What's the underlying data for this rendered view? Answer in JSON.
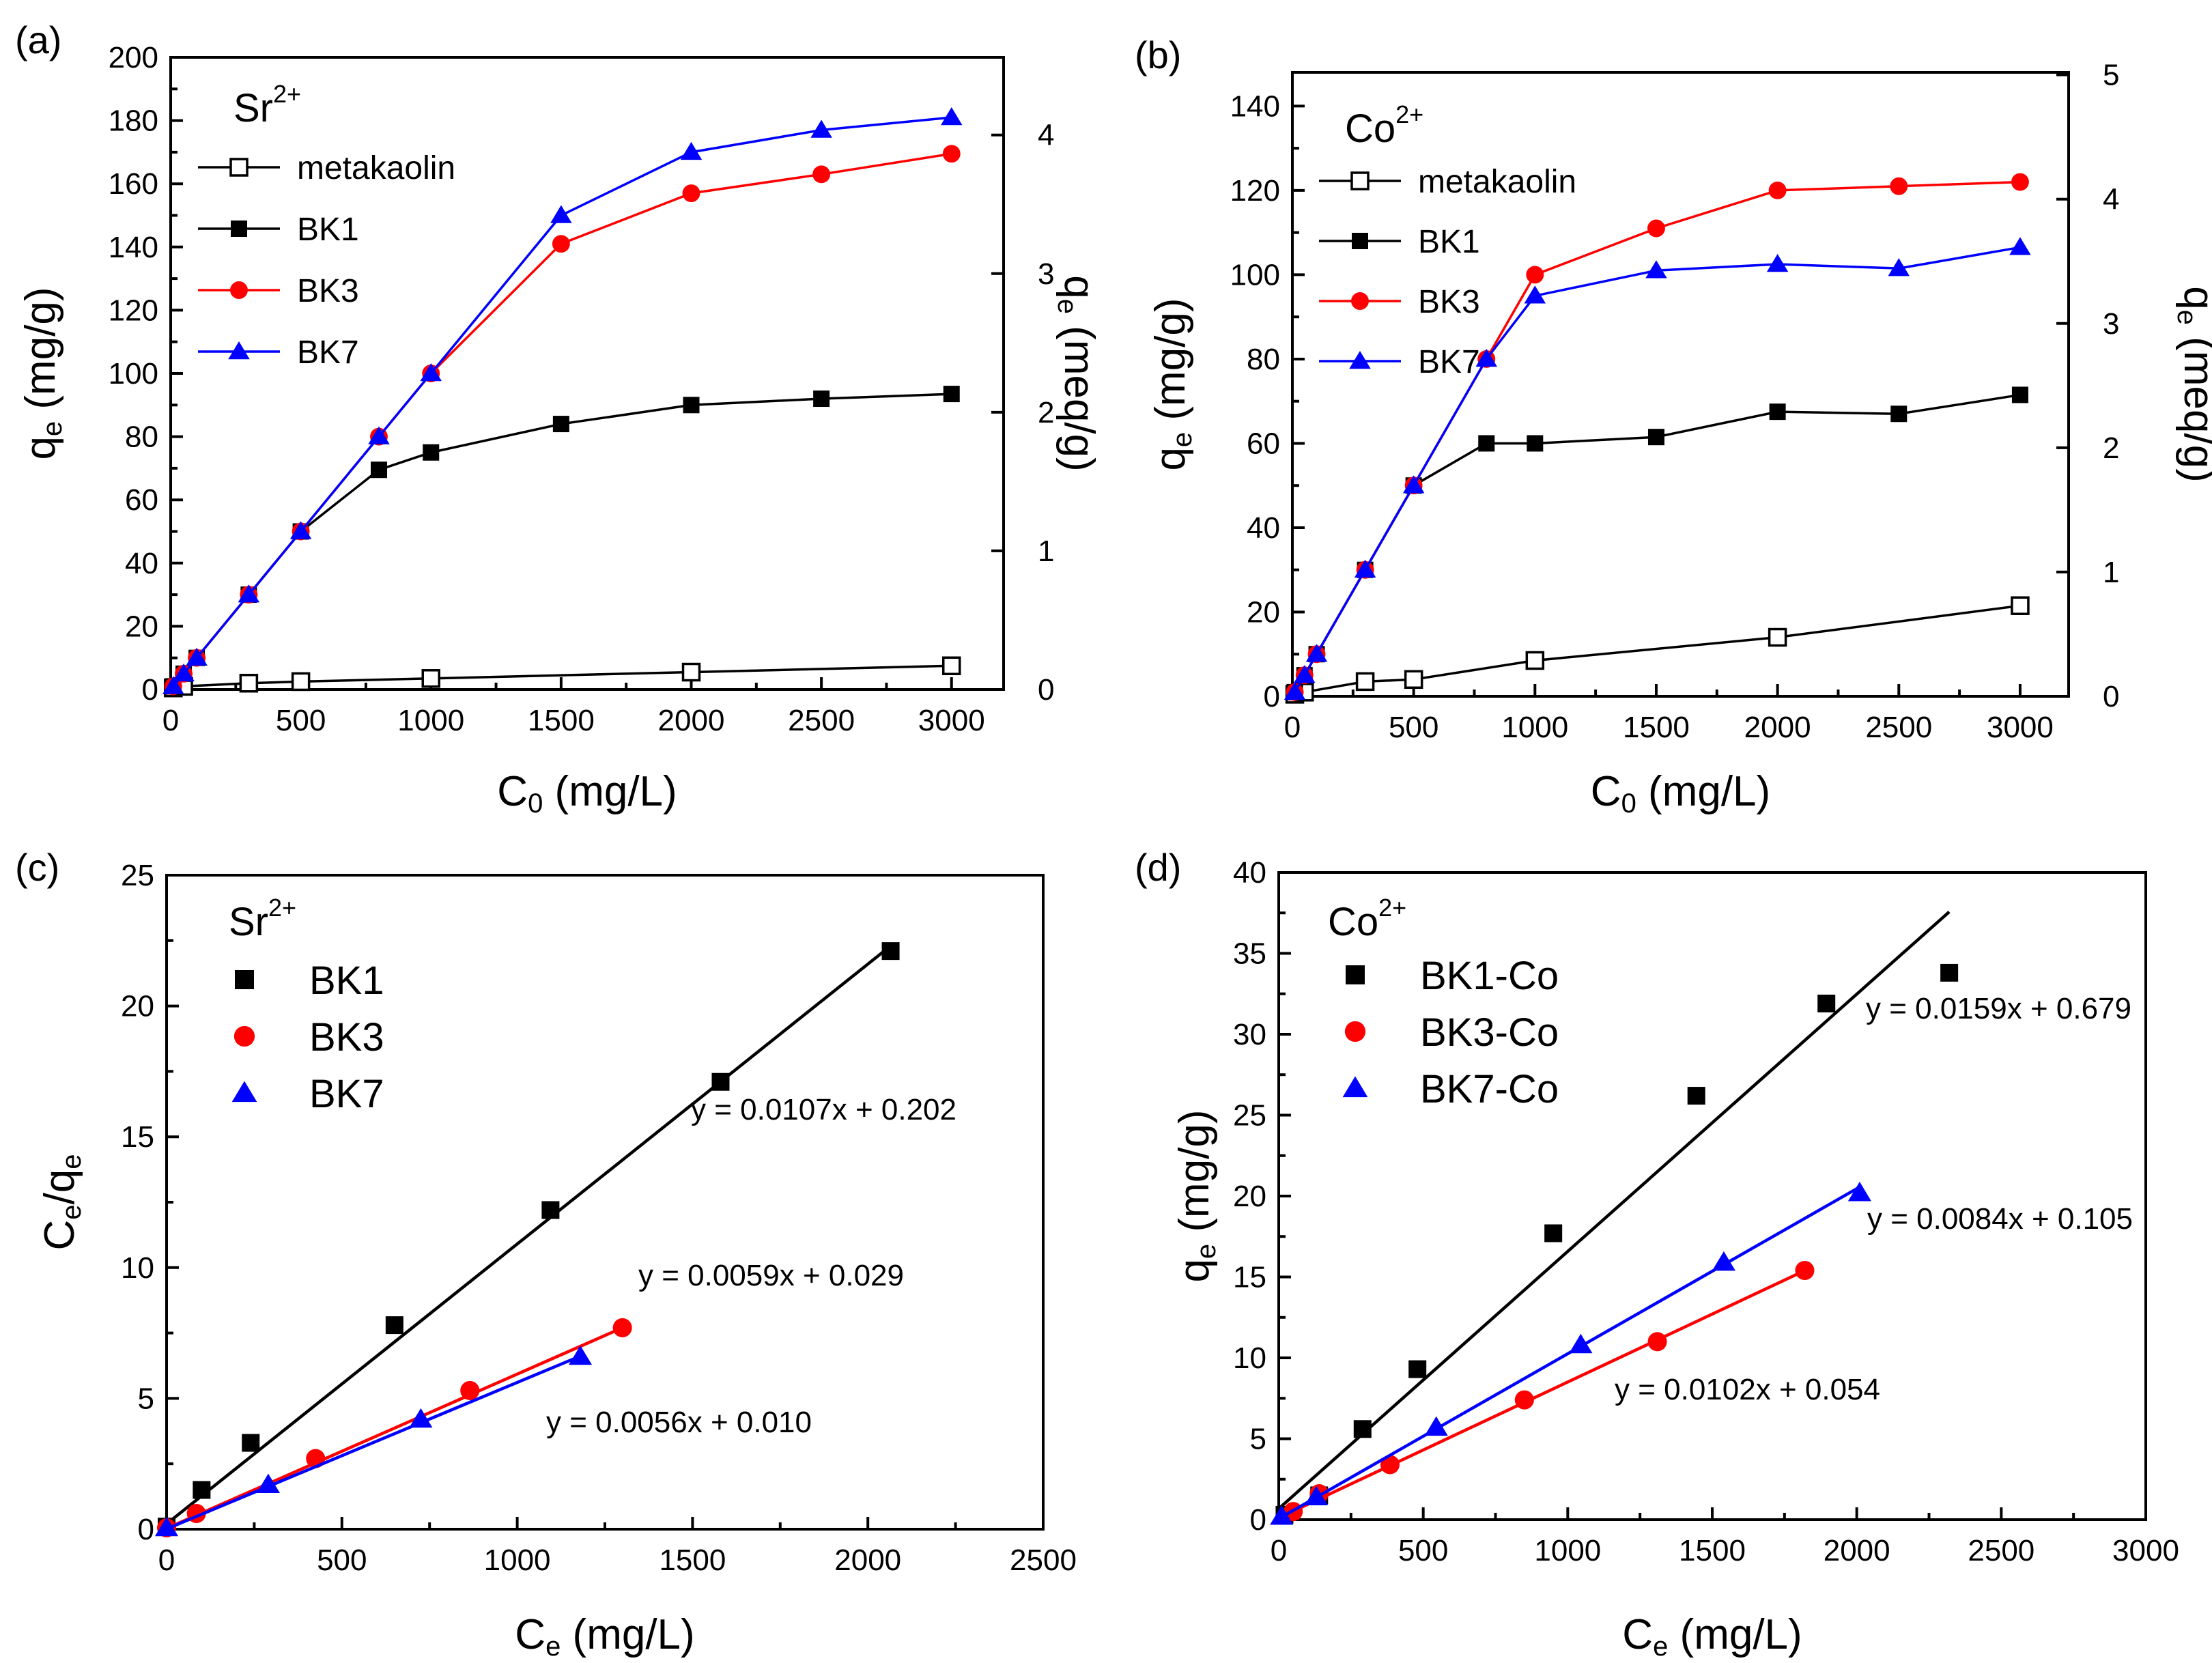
{
  "colors": {
    "black": "#000000",
    "red": "#ff0000",
    "blue": "#0000ff"
  },
  "chart_data": [
    {
      "type": "line",
      "panel_label": "(a)",
      "ion_base": "Sr",
      "ion_charge": "2+",
      "xlabel_main": "C",
      "xlabel_sub": "0",
      "xlabel_unit": " (mg/L)",
      "ylabel_main": "q",
      "ylabel_sub": "e",
      "ylabel_unit": " (mg/g)",
      "y2label_main": "q",
      "y2label_sub": "e",
      "y2label_unit": " (meq/g)",
      "xlim": [
        0,
        3200
      ],
      "ylim": [
        0,
        200
      ],
      "y2lim": [
        0,
        4.56
      ],
      "xticks": [
        0,
        500,
        1000,
        1500,
        2000,
        2500,
        3000
      ],
      "yticks": [
        0,
        20,
        40,
        60,
        80,
        100,
        120,
        140,
        160,
        180,
        200
      ],
      "y2ticks": [
        0,
        1,
        2,
        3,
        4
      ],
      "legend_labels": [
        "metakaolin",
        "BK1",
        "BK3",
        "BK7"
      ],
      "series": [
        {
          "name": "metakaolin",
          "marker": "open-square",
          "color": "#000000",
          "x": [
            10,
            50,
            300,
            500,
            1000,
            2000,
            3000
          ],
          "y": [
            0.5,
            1,
            2,
            2.5,
            3.5,
            5.5,
            7.5
          ]
        },
        {
          "name": "BK1",
          "marker": "square",
          "color": "#000000",
          "x": [
            10,
            50,
            100,
            300,
            500,
            800,
            1000,
            1500,
            2000,
            2500,
            3000
          ],
          "y": [
            1,
            5,
            10,
            30,
            50,
            69.5,
            75,
            84,
            90,
            92,
            93.5
          ]
        },
        {
          "name": "BK3",
          "marker": "circle",
          "color": "#ff0000",
          "x": [
            10,
            50,
            100,
            300,
            500,
            800,
            1000,
            1500,
            2000,
            2500,
            3000
          ],
          "y": [
            1,
            5,
            10,
            30,
            50,
            80,
            100,
            141,
            157,
            163,
            169.5
          ]
        },
        {
          "name": "BK7",
          "marker": "triangle",
          "color": "#0000ff",
          "x": [
            10,
            50,
            100,
            300,
            500,
            800,
            1000,
            1500,
            2000,
            2500,
            3000
          ],
          "y": [
            1,
            5,
            10,
            30,
            50,
            80,
            100,
            150,
            170,
            177,
            181
          ]
        }
      ],
      "equations": []
    },
    {
      "type": "line",
      "panel_label": "(b)",
      "ion_base": "Co",
      "ion_charge": "2+",
      "xlabel_main": "C",
      "xlabel_sub": "0",
      "xlabel_unit": " (mg/L)",
      "ylabel_main": "q",
      "ylabel_sub": "e",
      "ylabel_unit": " (mg/g)",
      "y2label_main": "q",
      "y2label_sub": "e",
      "y2label_unit": " (meq/g)",
      "xlim": [
        0,
        3200
      ],
      "ylim": [
        0,
        148
      ],
      "y2lim": [
        0,
        5.02
      ],
      "xticks": [
        0,
        500,
        1000,
        1500,
        2000,
        2500,
        3000
      ],
      "yticks": [
        0,
        20,
        40,
        60,
        80,
        100,
        120,
        140
      ],
      "y2ticks": [
        0,
        1,
        2,
        3,
        4,
        5
      ],
      "legend_labels": [
        "metakaolin",
        "BK1",
        "BK3",
        "BK7"
      ],
      "series": [
        {
          "name": "metakaolin",
          "marker": "open-square",
          "color": "#000000",
          "x": [
            10,
            50,
            300,
            500,
            1000,
            2000,
            3000
          ],
          "y": [
            0.5,
            1,
            3.5,
            4,
            8.5,
            14,
            21.5
          ]
        },
        {
          "name": "BK1",
          "marker": "square",
          "color": "#000000",
          "x": [
            10,
            50,
            100,
            300,
            500,
            800,
            1000,
            1500,
            2000,
            2500,
            3000
          ],
          "y": [
            1,
            5,
            10,
            30,
            50,
            60,
            60,
            61.5,
            67.5,
            67,
            71.5
          ]
        },
        {
          "name": "BK3",
          "marker": "circle",
          "color": "#ff0000",
          "x": [
            10,
            50,
            100,
            300,
            500,
            800,
            1000,
            1500,
            2000,
            2500,
            3000
          ],
          "y": [
            1,
            5,
            10,
            30,
            50,
            80,
            100,
            111,
            120,
            121,
            122
          ]
        },
        {
          "name": "BK7",
          "marker": "triangle",
          "color": "#0000ff",
          "x": [
            10,
            50,
            100,
            300,
            500,
            800,
            1000,
            1500,
            2000,
            2500,
            3000
          ],
          "y": [
            1,
            5,
            10,
            30,
            50,
            80,
            95,
            101,
            102.5,
            101.5,
            106.5
          ]
        }
      ],
      "equations": []
    },
    {
      "type": "scatter",
      "panel_label": "(c)",
      "ion_base": "Sr",
      "ion_charge": "2+",
      "xlabel_main": "C",
      "xlabel_sub": "e",
      "xlabel_unit": " (mg/L)",
      "ylabel_main": "C",
      "ylabel_sub": "e",
      "ylabel_unit": "/q",
      "ylabel_sub2": "e",
      "xlim": [
        0,
        2500
      ],
      "ylim": [
        0,
        25
      ],
      "xticks": [
        0,
        500,
        1000,
        1500,
        2000,
        2500
      ],
      "yticks": [
        0,
        5,
        10,
        15,
        20,
        25
      ],
      "legend_labels": [
        "BK1",
        "BK3",
        "BK7"
      ],
      "series": [
        {
          "name": "BK1",
          "marker": "square",
          "color": "#000000",
          "x": [
            0,
            100,
            240,
            650,
            1095,
            1580,
            2065
          ],
          "y": [
            0.1,
            1.5,
            3.3,
            7.8,
            12.2,
            17.1,
            22.1
          ],
          "fit_x": [
            0,
            2065
          ],
          "fit_slope": 0.0107,
          "fit_intercept": 0.202
        },
        {
          "name": "BK3",
          "marker": "circle",
          "color": "#ff0000",
          "x": [
            0,
            85,
            425,
            865,
            1300
          ],
          "y": [
            0.05,
            0.6,
            2.7,
            5.3,
            7.7
          ],
          "fit_x": [
            0,
            1300
          ],
          "fit_slope": 0.0059,
          "fit_intercept": 0.029
        },
        {
          "name": "BK7",
          "marker": "triangle",
          "color": "#0000ff",
          "x": [
            0,
            290,
            725,
            1180
          ],
          "y": [
            0.05,
            1.7,
            4.2,
            6.6
          ],
          "fit_x": [
            0,
            1180
          ],
          "fit_slope": 0.0056,
          "fit_intercept": 0.01
        }
      ],
      "equations": [
        {
          "text": "y = 0.0107x + 0.202",
          "color": "#000000"
        },
        {
          "text": "y = 0.0059x + 0.029",
          "color": "#ff0000"
        },
        {
          "text": "y = 0.0056x + 0.010",
          "color": "#0000ff"
        }
      ]
    },
    {
      "type": "scatter",
      "panel_label": "(d)",
      "ion_base": "Co",
      "ion_charge": "2+",
      "xlabel_main": "C",
      "xlabel_sub": "e",
      "xlabel_unit": " (mg/L)",
      "ylabel_main": "q",
      "ylabel_sub": "e",
      "ylabel_unit": " (mg/g)",
      "xlim": [
        0,
        3000
      ],
      "ylim": [
        0,
        40
      ],
      "xticks": [
        0,
        500,
        1000,
        1500,
        2000,
        2500,
        3000
      ],
      "yticks": [
        0,
        5,
        10,
        15,
        20,
        25,
        30,
        35,
        40
      ],
      "legend_labels": [
        "BK1-Co",
        "BK3-Co",
        "BK7-Co"
      ],
      "series": [
        {
          "name": "BK1-Co",
          "marker": "square",
          "color": "#000000",
          "x": [
            20,
            140,
            290,
            480,
            950,
            1445,
            1895,
            2320
          ],
          "y": [
            0.3,
            1.5,
            5.6,
            9.3,
            17.7,
            26.2,
            31.9,
            33.8
          ],
          "fit_x": [
            0,
            2320
          ],
          "fit_slope": 0.0159,
          "fit_intercept": 0.679
        },
        {
          "name": "BK3-Co",
          "marker": "circle",
          "color": "#ff0000",
          "x": [
            50,
            140,
            385,
            850,
            1310,
            1820
          ],
          "y": [
            0.5,
            1.6,
            3.4,
            7.4,
            11.0,
            15.4
          ],
          "fit_x": [
            0,
            1820
          ],
          "fit_slope": 0.0084,
          "fit_intercept": 0.105
        },
        {
          "name": "BK7-Co",
          "marker": "triangle",
          "color": "#0000ff",
          "x": [
            10,
            130,
            545,
            1045,
            1540,
            2010
          ],
          "y": [
            0.2,
            1.4,
            5.7,
            10.8,
            15.9,
            20.2
          ],
          "fit_x": [
            0,
            2010
          ],
          "fit_slope": 0.0102,
          "fit_intercept": 0.054
        }
      ],
      "equations": [
        {
          "text": "y = 0.0159x + 0.679",
          "color": "#000000"
        },
        {
          "text": "y = 0.0084x + 0.105",
          "color": "#ff0000"
        },
        {
          "text": "y = 0.0102x + 0.054",
          "color": "#0000ff"
        }
      ]
    }
  ]
}
